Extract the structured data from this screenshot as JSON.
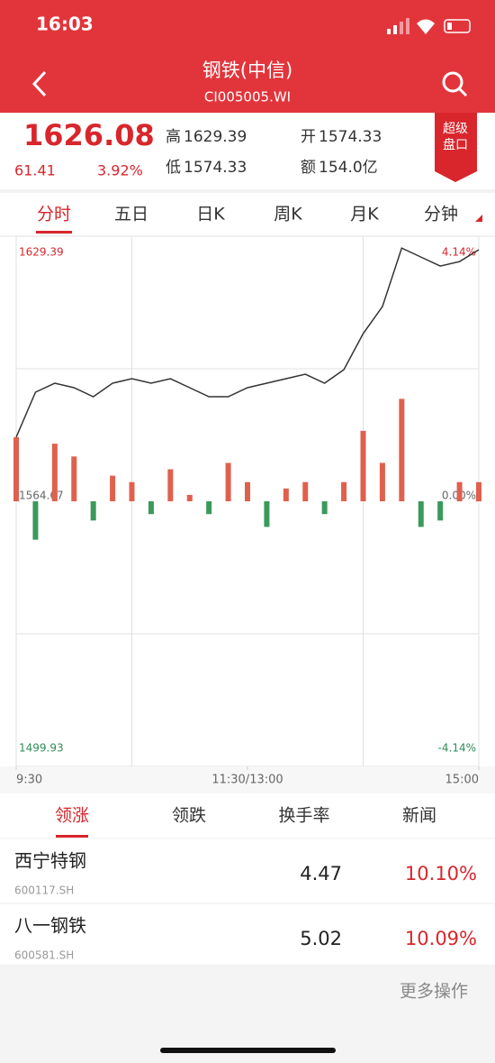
{
  "status_bar": {
    "time": "16:03"
  },
  "header": {
    "title": "钢铁(中信)",
    "code": "CI005005.WI"
  },
  "quote": {
    "price": "1626.08",
    "change": "61.41",
    "change_pct": "3.92%",
    "high_label": "高",
    "high": "1629.39",
    "open_label": "开",
    "open": "1574.33",
    "low_label": "低",
    "low": "1574.33",
    "amount_label": "额",
    "amount": "154.0亿",
    "badge": [
      "超级",
      "盘口"
    ]
  },
  "tabs": [
    "分时",
    "五日",
    "日K",
    "周K",
    "月K",
    "分钟"
  ],
  "chart_data": {
    "type": "line",
    "x": [
      0,
      10,
      20,
      30,
      40,
      50,
      60,
      70,
      80,
      90,
      100,
      110,
      120,
      130,
      140,
      150,
      160,
      170,
      180,
      190,
      200,
      210,
      220,
      230,
      240
    ],
    "series": [
      {
        "color": "#333333",
        "values": [
          1580.3,
          1591.3,
          1593.5,
          1592.4,
          1590.2,
          1593.5,
          1594.6,
          1593.5,
          1594.6,
          1592.4,
          1590.2,
          1590.2,
          1592.4,
          1593.5,
          1594.6,
          1595.7,
          1593.5,
          1596.8,
          1605.6,
          1612.2,
          1626.5,
          1624.3,
          1622.1,
          1623.2,
          1626.08
        ]
      },
      {
        "type": "bar",
        "axis": "y2",
        "up_color": "#e0604e",
        "down_color": "#3a9a5c",
        "values": [
          1.0,
          -0.6,
          0.9,
          0.7,
          -0.3,
          0.4,
          0.3,
          -0.2,
          0.5,
          0.1,
          -0.2,
          0.6,
          0.3,
          -0.4,
          0.2,
          0.3,
          -0.2,
          0.3,
          1.1,
          0.6,
          1.6,
          -0.4,
          -0.3,
          0.3,
          0.3
        ]
      }
    ],
    "xlim": [
      0,
      240
    ],
    "xticks": [
      {
        "value": 0,
        "label": "9:30"
      },
      {
        "value": 120,
        "label": "11:30/13:00"
      },
      {
        "value": 240,
        "label": "15:00"
      }
    ],
    "ylim": [
      1499.93,
      1629.39
    ],
    "yticks": [
      1629.39,
      1564.67,
      1499.93
    ],
    "y2lim": [
      -4.14,
      4.14
    ],
    "y2ticks": [
      {
        "value": 4.14,
        "label": "4.14%"
      },
      {
        "value": 0,
        "label": "0.00%"
      },
      {
        "value": -4.14,
        "label": "-4.14%"
      }
    ]
  },
  "list_tabs": [
    "领涨",
    "领跌",
    "换手率",
    "新闻"
  ],
  "stocks": [
    {
      "name": "西宁特钢",
      "code": "600117.SH",
      "price": 4.47,
      "change": "10.10%"
    },
    {
      "name": "八一钢铁",
      "code": "600581.SH",
      "price": 5.02,
      "change": "10.09%"
    }
  ],
  "footer": {
    "action": "更多操作"
  }
}
